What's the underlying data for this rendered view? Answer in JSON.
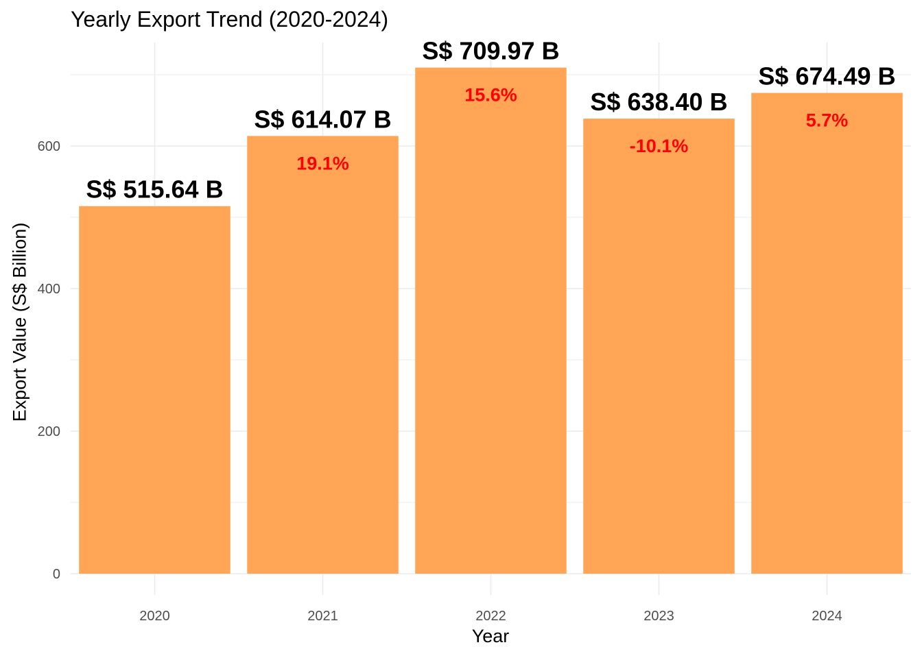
{
  "chart_data": {
    "type": "bar",
    "title": "Yearly Export Trend (2020-2024)",
    "xlabel": "Year",
    "ylabel": "Export Value (S$ Billion)",
    "categories": [
      "2020",
      "2021",
      "2022",
      "2023",
      "2024"
    ],
    "values": [
      515.64,
      614.07,
      709.97,
      638.4,
      674.49
    ],
    "value_labels": [
      "S$ 515.64 B",
      "S$ 614.07 B",
      "S$ 709.97 B",
      "S$ 638.40 B",
      "S$ 674.49 B"
    ],
    "growth_labels": [
      "",
      "19.1%",
      "15.6%",
      "-10.1%",
      "5.7%"
    ],
    "ylim": [
      0,
      750
    ],
    "yticks": [
      0,
      200,
      400,
      600
    ],
    "grid": true,
    "legend": "none",
    "colors": {
      "bar": "#ffa555",
      "value_label": "#000000",
      "growth_label": "#ff0000",
      "grid": "#ebebeb",
      "tick_label": "#4d4d4d"
    }
  }
}
